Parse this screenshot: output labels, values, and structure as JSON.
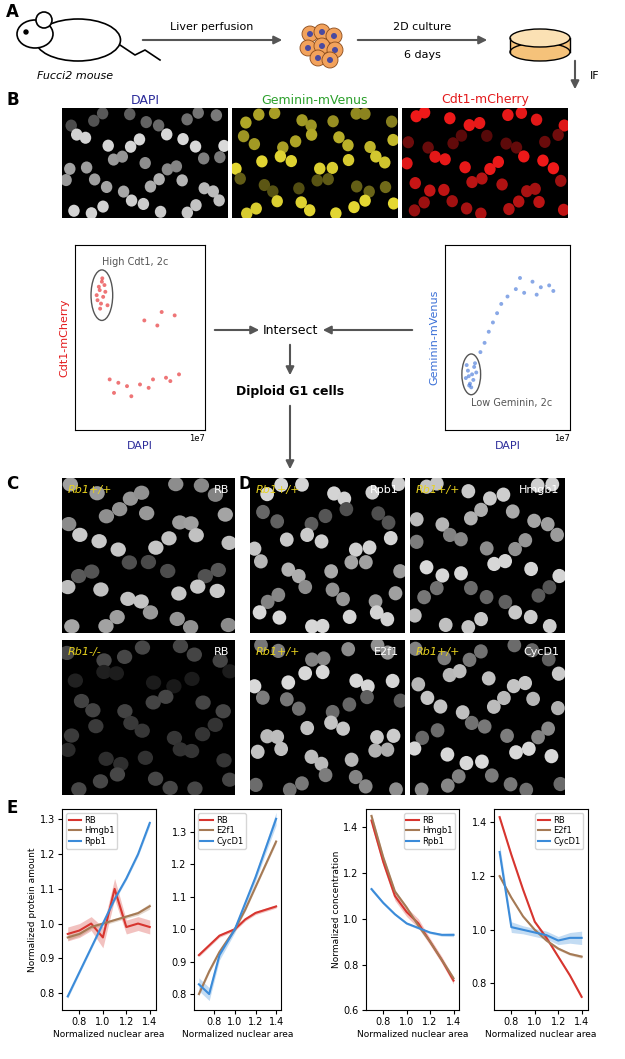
{
  "panel_labels": [
    "A",
    "B",
    "C",
    "D",
    "E"
  ],
  "workflow": {
    "mouse": "Fucci2 mouse",
    "step1": "Liver perfusion",
    "step2": [
      "2D culture",
      "6 days"
    ],
    "step3": "IF"
  },
  "channels": [
    {
      "label": "DAPI",
      "color": "#2b2b9a"
    },
    {
      "label": "Geminin-mVenus",
      "color": "#2ca02c"
    },
    {
      "label": "Cdt1-mCherry",
      "color": "#e31a1c"
    }
  ],
  "gating": {
    "intersect": "Intersect",
    "result": "Diploid G1 cells"
  },
  "panel_C": [
    {
      "genotype": "Rb1+/+",
      "stain": "RB"
    },
    {
      "genotype": "Rb1-/-",
      "stain": "RB"
    }
  ],
  "panel_D": [
    {
      "genotype": "Rb1+/+",
      "stain": "Rpb1"
    },
    {
      "genotype": "Rb1+/+",
      "stain": "Hmgb1"
    },
    {
      "genotype": "Rb1+/+",
      "stain": "E2f1"
    },
    {
      "genotype": "Rb1+/+",
      "stain": "CycD1"
    }
  ],
  "chart_data": [
    {
      "type": "scatter",
      "x_label": "DAPI",
      "y_label": "Cdt1-mCherry",
      "color": "#e31a1c",
      "x": [
        0.5,
        0.55,
        0.6,
        0.62,
        0.65,
        0.7,
        0.58,
        0.68,
        0.52,
        0.75,
        0.63,
        0.57,
        0.8,
        1.0,
        1.2,
        1.5,
        1.8,
        2.1,
        2.4,
        0.9,
        1.3,
        1.7,
        2.2,
        1.6,
        2.0,
        2.3,
        1.9
      ],
      "values": [
        8.0,
        8.5,
        7.5,
        8.8,
        7.9,
        8.2,
        7.2,
        8.6,
        7.7,
        7.4,
        9.0,
        8.3,
        3.0,
        2.8,
        2.6,
        2.7,
        3.0,
        3.1,
        3.3,
        2.2,
        2.0,
        2.5,
        2.9,
        6.5,
        7.0,
        6.8,
        6.2
      ],
      "xlim": [
        0,
        3
      ],
      "ylim": [
        0,
        11
      ],
      "tick_labels": false,
      "annotations": [
        "1e7"
      ],
      "gate": {
        "label": "High Cdt1, 2c",
        "center": [
          0.62,
          8.0
        ],
        "width": 0.5,
        "height": 3.0
      }
    },
    {
      "type": "scatter",
      "x_label": "DAPI",
      "y_label": "Geminin-mVenus",
      "color": "#3a6fd6",
      "x": [
        0.5,
        0.55,
        0.6,
        0.65,
        0.7,
        0.58,
        0.68,
        0.52,
        0.75,
        0.63,
        0.57,
        0.72,
        0.85,
        0.95,
        1.05,
        1.15,
        1.25,
        1.35,
        1.5,
        1.7,
        1.9,
        2.1,
        2.3,
        2.5,
        1.8,
        2.2,
        2.6
      ],
      "values": [
        2.8,
        3.2,
        2.5,
        3.0,
        3.4,
        2.4,
        2.7,
        3.5,
        3.1,
        2.3,
        2.9,
        3.6,
        4.2,
        4.7,
        5.3,
        5.8,
        6.3,
        6.8,
        7.2,
        7.6,
        7.4,
        8.0,
        7.7,
        7.8,
        8.2,
        7.3,
        7.5
      ],
      "xlim": [
        0,
        3
      ],
      "ylim": [
        0,
        10
      ],
      "tick_labels": false,
      "annotations": [
        "1e7"
      ],
      "gate": {
        "label": "Low Geminin, 2c",
        "center": [
          0.63,
          3.0
        ],
        "width": 0.45,
        "height": 2.2
      }
    },
    {
      "type": "line",
      "x_label": "Normalized nuclear area",
      "y_label": "Normalized protein amount",
      "x": [
        0.7,
        0.8,
        0.9,
        1.0,
        1.1,
        1.2,
        1.3,
        1.4
      ],
      "series": [
        {
          "name": "RB",
          "color": "#d7352f",
          "values": [
            0.97,
            0.98,
            1.0,
            0.96,
            1.1,
            0.99,
            1.0,
            0.99
          ],
          "errors": [
            0.02,
            0.02,
            0.02,
            0.03,
            0.03,
            0.02,
            0.02,
            0.02
          ]
        },
        {
          "name": "Hmgb1",
          "color": "#a57a55",
          "values": [
            0.96,
            0.97,
            0.99,
            1.0,
            1.01,
            1.02,
            1.03,
            1.05
          ],
          "errors": [
            0.008,
            0.006,
            0.005,
            0.005,
            0.005,
            0.005,
            0.006,
            0.008
          ]
        },
        {
          "name": "Rpb1",
          "color": "#3b8bd9",
          "values": [
            0.79,
            0.86,
            0.93,
            1.0,
            1.07,
            1.13,
            1.2,
            1.29
          ],
          "errors": [
            0.006,
            0.005,
            0.005,
            0.005,
            0.005,
            0.005,
            0.006,
            0.008
          ]
        }
      ],
      "xlim": [
        0.65,
        1.45
      ],
      "xticks": [
        0.8,
        1.0,
        1.2,
        1.4
      ],
      "ylim": [
        0.75,
        1.33
      ],
      "yticks": [
        0.8,
        0.9,
        1.0,
        1.1,
        1.2,
        1.3
      ],
      "legend": "upper left"
    },
    {
      "type": "line",
      "x_label": "Normalized nuclear area",
      "x": [
        0.65,
        0.75,
        0.85,
        1.0,
        1.1,
        1.2,
        1.3,
        1.4
      ],
      "series": [
        {
          "name": "RB",
          "color": "#d7352f",
          "values": [
            0.92,
            0.95,
            0.98,
            1.0,
            1.03,
            1.05,
            1.06,
            1.07
          ],
          "errors": [
            0.005,
            0.005,
            0.005,
            0.005,
            0.005,
            0.005,
            0.005,
            0.005
          ]
        },
        {
          "name": "E2f1",
          "color": "#a57a55",
          "values": [
            0.8,
            0.87,
            0.93,
            1.0,
            1.06,
            1.13,
            1.2,
            1.27
          ],
          "errors": [
            0.005,
            0.005,
            0.005,
            0.005,
            0.005,
            0.005,
            0.005,
            0.006
          ]
        },
        {
          "name": "CycD1",
          "color": "#3b8bd9",
          "values": [
            0.83,
            0.8,
            0.92,
            1.0,
            1.08,
            1.16,
            1.25,
            1.34
          ],
          "errors": [
            0.02,
            0.02,
            0.015,
            0.01,
            0.01,
            0.012,
            0.015,
            0.02
          ]
        }
      ],
      "xlim": [
        0.6,
        1.45
      ],
      "xticks": [
        0.8,
        1.0,
        1.2,
        1.4
      ],
      "ylim": [
        0.75,
        1.37
      ],
      "yticks": [
        0.8,
        0.9,
        1.0,
        1.1,
        1.2,
        1.3
      ],
      "legend": "upper left"
    },
    {
      "type": "line",
      "x_label": "Normalized nuclear area",
      "y_label": "Normalized concentration",
      "x": [
        0.7,
        0.8,
        0.9,
        1.0,
        1.1,
        1.2,
        1.3,
        1.4
      ],
      "series": [
        {
          "name": "RB",
          "color": "#d7352f",
          "values": [
            1.43,
            1.25,
            1.1,
            1.03,
            0.98,
            0.9,
            0.82,
            0.73
          ],
          "errors": [
            0.02,
            0.02,
            0.02,
            0.02,
            0.02,
            0.015,
            0.015,
            0.015
          ]
        },
        {
          "name": "Hmgb1",
          "color": "#a57a55",
          "values": [
            1.45,
            1.27,
            1.12,
            1.05,
            0.97,
            0.9,
            0.82,
            0.74
          ],
          "errors": [
            0.01,
            0.008,
            0.006,
            0.005,
            0.005,
            0.005,
            0.006,
            0.008
          ]
        },
        {
          "name": "Rpb1",
          "color": "#3b8bd9",
          "values": [
            1.13,
            1.07,
            1.02,
            0.98,
            0.96,
            0.94,
            0.93,
            0.93
          ],
          "errors": [
            0.008,
            0.006,
            0.005,
            0.005,
            0.005,
            0.005,
            0.006,
            0.008
          ]
        }
      ],
      "xlim": [
        0.65,
        1.45
      ],
      "xticks": [
        0.8,
        1.0,
        1.2,
        1.4
      ],
      "ylim": [
        0.6,
        1.48
      ],
      "yticks": [
        0.6,
        0.8,
        1.0,
        1.2,
        1.4
      ],
      "legend": "upper right"
    },
    {
      "type": "line",
      "x_label": "Normalized nuclear area",
      "x": [
        0.7,
        0.8,
        0.9,
        1.0,
        1.1,
        1.2,
        1.3,
        1.4
      ],
      "series": [
        {
          "name": "RB",
          "color": "#d7352f",
          "values": [
            1.42,
            1.28,
            1.15,
            1.03,
            0.97,
            0.9,
            0.83,
            0.75
          ],
          "errors": [
            0.005,
            0.005,
            0.005,
            0.005,
            0.005,
            0.005,
            0.005,
            0.005
          ]
        },
        {
          "name": "E2f1",
          "color": "#a57a55",
          "values": [
            1.2,
            1.12,
            1.05,
            1.0,
            0.96,
            0.93,
            0.91,
            0.9
          ],
          "errors": [
            0.006,
            0.005,
            0.005,
            0.005,
            0.005,
            0.005,
            0.005,
            0.006
          ]
        },
        {
          "name": "CycD1",
          "color": "#3b8bd9",
          "values": [
            1.29,
            1.01,
            1.0,
            0.99,
            0.98,
            0.96,
            0.97,
            0.97
          ],
          "errors": [
            0.03,
            0.02,
            0.015,
            0.015,
            0.015,
            0.015,
            0.02,
            0.025
          ]
        }
      ],
      "xlim": [
        0.65,
        1.45
      ],
      "xticks": [
        0.8,
        1.0,
        1.2,
        1.4
      ],
      "ylim": [
        0.7,
        1.45
      ],
      "yticks": [
        0.8,
        1.0,
        1.2,
        1.4
      ],
      "legend": "upper right"
    }
  ]
}
